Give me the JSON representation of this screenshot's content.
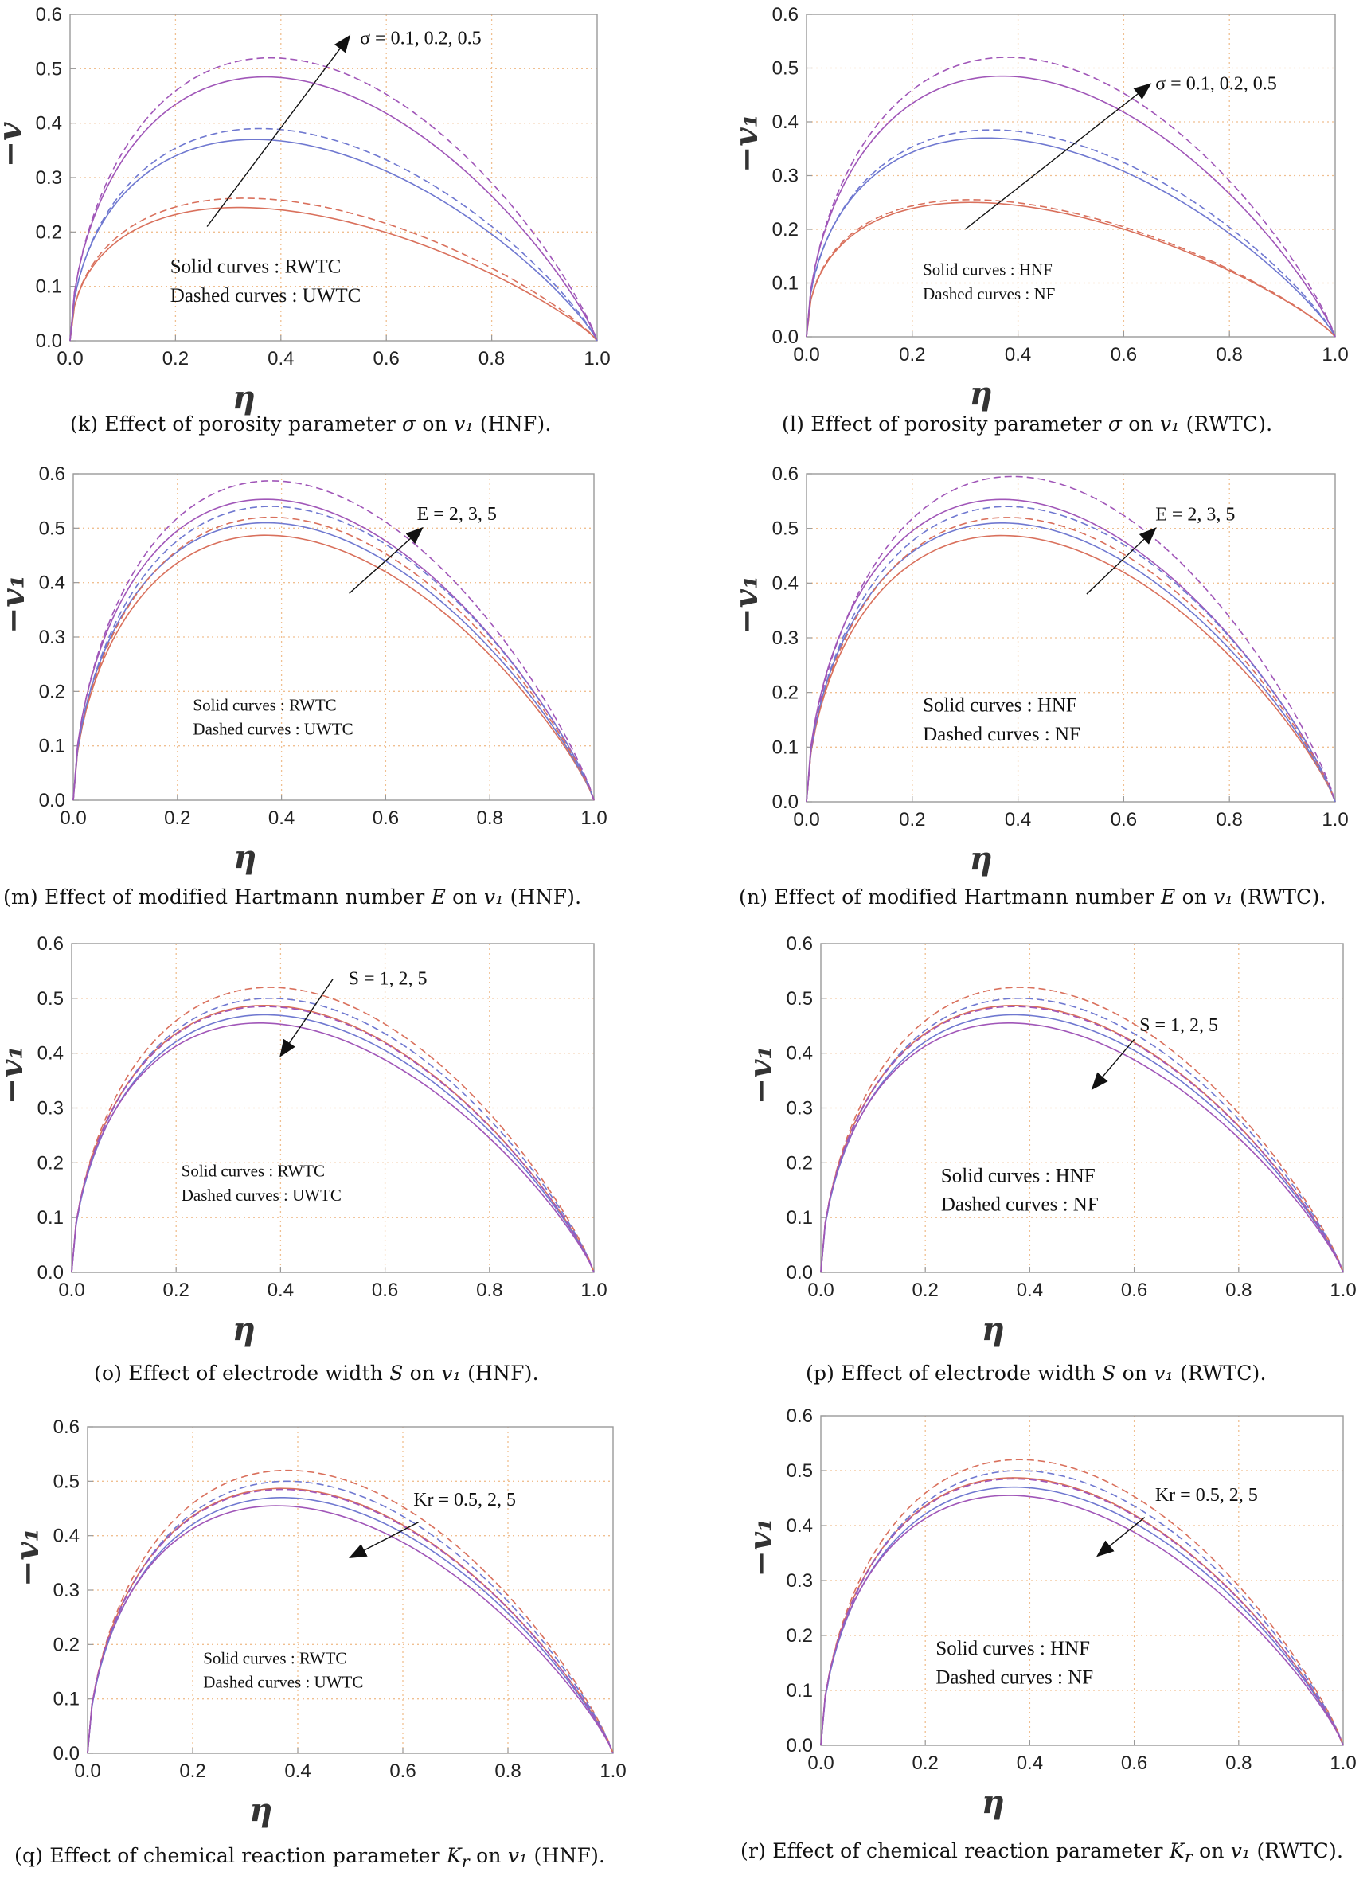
{
  "figure": {
    "colors": {
      "series": [
        "#d9705c",
        "#6f78d0",
        "#a056b8"
      ],
      "frame": "#9a9a9a",
      "grid": "#f0bf90",
      "axis_text": "#222222",
      "arrow": "#111111"
    },
    "panels": [
      {
        "id": "k",
        "caption": {
          "prefix": "(k) Effect of porosity parameter ",
          "sym": "σ",
          "suffix": " on ",
          "var": "v₁",
          "tail": " (HNF)."
        },
        "chart_data": {
          "type": "line",
          "xlabel": "η",
          "ylabel": "−v",
          "xlim": [
            0,
            1
          ],
          "ylim": [
            0,
            0.6
          ],
          "xticks": [
            "0.0",
            "0.2",
            "0.4",
            "0.6",
            "0.8",
            "1.0"
          ],
          "yticks": [
            "0.0",
            "0.1",
            "0.2",
            "0.3",
            "0.4",
            "0.5",
            "0.6"
          ],
          "series": [
            {
              "name": "σ = 0.1 (RWTC)",
              "style": "solid",
              "color": 0,
              "peak": 0.245,
              "peak_x": 0.32
            },
            {
              "name": "σ = 0.2 (RWTC)",
              "style": "solid",
              "color": 1,
              "peak": 0.37,
              "peak_x": 0.35
            },
            {
              "name": "σ = 0.5 (RWTC)",
              "style": "solid",
              "color": 2,
              "peak": 0.485,
              "peak_x": 0.37
            },
            {
              "name": "σ = 0.1 (UWTC)",
              "style": "dashed",
              "color": 0,
              "peak": 0.262,
              "peak_x": 0.33
            },
            {
              "name": "σ = 0.2 (UWTC)",
              "style": "dashed",
              "color": 1,
              "peak": 0.39,
              "peak_x": 0.36
            },
            {
              "name": "σ = 0.5 (UWTC)",
              "style": "dashed",
              "color": 2,
              "peak": 0.52,
              "peak_x": 0.38
            }
          ],
          "annotation": {
            "text": "σ = 0.1, 0.2, 0.5",
            "from": [
              0.26,
              0.21
            ],
            "to": [
              0.53,
              0.56
            ],
            "text_at": [
              0.55,
              0.545
            ]
          },
          "legend": {
            "solid": "Solid curves : RWTC",
            "dashed": "Dashed curves : UWTC",
            "at": [
              0.19,
              0.125
            ],
            "size": "large"
          }
        }
      },
      {
        "id": "l",
        "caption": {
          "prefix": "(l) Effect of porosity parameter ",
          "sym": "σ",
          "suffix": " on ",
          "var": "v₁",
          "tail": " (RWTC)."
        },
        "chart_data": {
          "type": "line",
          "xlabel": "η",
          "ylabel": "−v₁",
          "xlim": [
            0,
            1
          ],
          "ylim": [
            0,
            0.6
          ],
          "xticks": [
            "0.0",
            "0.2",
            "0.4",
            "0.6",
            "0.8",
            "1.0"
          ],
          "yticks": [
            "0.0",
            "0.1",
            "0.2",
            "0.3",
            "0.4",
            "0.5",
            "0.6"
          ],
          "series": [
            {
              "name": "σ = 0.1 (HNF)",
              "style": "solid",
              "color": 0,
              "peak": 0.25,
              "peak_x": 0.31
            },
            {
              "name": "σ = 0.2 (HNF)",
              "style": "solid",
              "color": 1,
              "peak": 0.37,
              "peak_x": 0.34
            },
            {
              "name": "σ = 0.5 (HNF)",
              "style": "solid",
              "color": 2,
              "peak": 0.485,
              "peak_x": 0.37
            },
            {
              "name": "σ = 0.1 (NF)",
              "style": "dashed",
              "color": 0,
              "peak": 0.255,
              "peak_x": 0.31
            },
            {
              "name": "σ = 0.2 (NF)",
              "style": "dashed",
              "color": 1,
              "peak": 0.385,
              "peak_x": 0.35
            },
            {
              "name": "σ = 0.5 (NF)",
              "style": "dashed",
              "color": 2,
              "peak": 0.52,
              "peak_x": 0.38
            }
          ],
          "annotation": {
            "text": "σ = 0.1, 0.2, 0.5",
            "from": [
              0.3,
              0.2
            ],
            "to": [
              0.65,
              0.47
            ],
            "text_at": [
              0.66,
              0.46
            ]
          },
          "legend": {
            "solid": "Solid curves : HNF",
            "dashed": "Dashed curves : NF",
            "at": [
              0.22,
              0.115
            ],
            "size": "small"
          }
        }
      },
      {
        "id": "m",
        "caption": {
          "prefix": "(m) Effect of modified Hartmann number ",
          "sym": "E",
          "suffix": " on ",
          "var": "v₁",
          "tail": " (HNF)."
        },
        "chart_data": {
          "type": "line",
          "xlabel": "η",
          "ylabel": "−v₁",
          "xlim": [
            0,
            1
          ],
          "ylim": [
            0,
            0.6
          ],
          "xticks": [
            "0.0",
            "0.2",
            "0.4",
            "0.6",
            "0.8",
            "1.0"
          ],
          "yticks": [
            "0.0",
            "0.1",
            "0.2",
            "0.3",
            "0.4",
            "0.5",
            "0.6"
          ],
          "series": [
            {
              "name": "E = 2 (RWTC)",
              "style": "solid",
              "color": 0,
              "peak": 0.487,
              "peak_x": 0.37
            },
            {
              "name": "E = 3 (RWTC)",
              "style": "solid",
              "color": 1,
              "peak": 0.51,
              "peak_x": 0.37
            },
            {
              "name": "E = 5 (RWTC)",
              "style": "solid",
              "color": 2,
              "peak": 0.553,
              "peak_x": 0.37
            },
            {
              "name": "E = 2 (UWTC)",
              "style": "dashed",
              "color": 0,
              "peak": 0.52,
              "peak_x": 0.38
            },
            {
              "name": "E = 3 (UWTC)",
              "style": "dashed",
              "color": 1,
              "peak": 0.54,
              "peak_x": 0.38
            },
            {
              "name": "E = 5 (UWTC)",
              "style": "dashed",
              "color": 2,
              "peak": 0.587,
              "peak_x": 0.38
            }
          ],
          "annotation": {
            "text": "E = 2, 3, 5",
            "from": [
              0.53,
              0.38
            ],
            "to": [
              0.67,
              0.5
            ],
            "text_at": [
              0.66,
              0.515
            ]
          },
          "legend": {
            "solid": "Solid curves : RWTC",
            "dashed": "Dashed curves : UWTC",
            "at": [
              0.23,
              0.165
            ],
            "size": "small"
          }
        }
      },
      {
        "id": "n",
        "caption": {
          "prefix": "(n) Effect of modified Hartmann number ",
          "sym": "E",
          "suffix": " on ",
          "var": "v₁",
          "tail": " (RWTC)."
        },
        "chart_data": {
          "type": "line",
          "xlabel": "η",
          "ylabel": "−v₁",
          "xlim": [
            0,
            1
          ],
          "ylim": [
            0,
            0.6
          ],
          "xticks": [
            "0.0",
            "0.2",
            "0.4",
            "0.6",
            "0.8",
            "1.0"
          ],
          "yticks": [
            "0.0",
            "0.1",
            "0.2",
            "0.3",
            "0.4",
            "0.5",
            "0.6"
          ],
          "series": [
            {
              "name": "E = 2 (HNF)",
              "style": "solid",
              "color": 0,
              "peak": 0.487,
              "peak_x": 0.37
            },
            {
              "name": "E = 3 (HNF)",
              "style": "solid",
              "color": 1,
              "peak": 0.51,
              "peak_x": 0.37
            },
            {
              "name": "E = 5 (HNF)",
              "style": "solid",
              "color": 2,
              "peak": 0.553,
              "peak_x": 0.37
            },
            {
              "name": "E = 2 (NF)",
              "style": "dashed",
              "color": 0,
              "peak": 0.52,
              "peak_x": 0.38
            },
            {
              "name": "E = 3 (NF)",
              "style": "dashed",
              "color": 1,
              "peak": 0.54,
              "peak_x": 0.38
            },
            {
              "name": "E = 5 (NF)",
              "style": "dashed",
              "color": 2,
              "peak": 0.595,
              "peak_x": 0.39
            }
          ],
          "annotation": {
            "text": "E = 2, 3, 5",
            "from": [
              0.53,
              0.38
            ],
            "to": [
              0.66,
              0.5
            ],
            "text_at": [
              0.66,
              0.515
            ]
          },
          "legend": {
            "solid": "Solid curves : HNF",
            "dashed": "Dashed curves : NF",
            "at": [
              0.22,
              0.165
            ],
            "size": "large"
          }
        }
      },
      {
        "id": "o",
        "caption": {
          "prefix": "(o) Effect of electrode width ",
          "sym": "S",
          "suffix": " on ",
          "var": "v₁",
          "tail": " (HNF)."
        },
        "chart_data": {
          "type": "line",
          "xlabel": "η",
          "ylabel": "−v₁",
          "xlim": [
            0,
            1
          ],
          "ylim": [
            0,
            0.6
          ],
          "xticks": [
            "0.0",
            "0.2",
            "0.4",
            "0.6",
            "0.8",
            "1.0"
          ],
          "yticks": [
            "0.0",
            "0.1",
            "0.2",
            "0.3",
            "0.4",
            "0.5",
            "0.6"
          ],
          "series": [
            {
              "name": "S = 1 (RWTC)",
              "style": "solid",
              "color": 0,
              "peak": 0.487,
              "peak_x": 0.37
            },
            {
              "name": "S = 2 (RWTC)",
              "style": "solid",
              "color": 1,
              "peak": 0.47,
              "peak_x": 0.37
            },
            {
              "name": "S = 5 (RWTC)",
              "style": "solid",
              "color": 2,
              "peak": 0.455,
              "peak_x": 0.36
            },
            {
              "name": "S = 1 (UWTC)",
              "style": "dashed",
              "color": 0,
              "peak": 0.52,
              "peak_x": 0.38
            },
            {
              "name": "S = 2 (UWTC)",
              "style": "dashed",
              "color": 1,
              "peak": 0.5,
              "peak_x": 0.38
            },
            {
              "name": "S = 5 (UWTC)",
              "style": "dashed",
              "color": 2,
              "peak": 0.485,
              "peak_x": 0.37
            }
          ],
          "annotation": {
            "text": "S = 1, 2, 5",
            "from": [
              0.5,
              0.535
            ],
            "to": [
              0.4,
              0.395
            ],
            "text_at": [
              0.53,
              0.525
            ]
          },
          "legend": {
            "solid": "Solid curves : RWTC",
            "dashed": "Dashed curves : UWTC",
            "at": [
              0.21,
              0.175
            ],
            "size": "small"
          }
        }
      },
      {
        "id": "p",
        "caption": {
          "prefix": "(p) Effect of electrode width ",
          "sym": "S",
          "suffix": " on ",
          "var": "v₁",
          "tail": " (RWTC)."
        },
        "chart_data": {
          "type": "line",
          "xlabel": "η",
          "ylabel": "−v₁",
          "xlim": [
            0,
            1
          ],
          "ylim": [
            0,
            0.6
          ],
          "xticks": [
            "0.0",
            "0.2",
            "0.4",
            "0.6",
            "0.8",
            "1.0"
          ],
          "yticks": [
            "0.0",
            "0.1",
            "0.2",
            "0.3",
            "0.4",
            "0.5",
            "0.6"
          ],
          "series": [
            {
              "name": "S = 1 (HNF)",
              "style": "solid",
              "color": 0,
              "peak": 0.487,
              "peak_x": 0.37
            },
            {
              "name": "S = 2 (HNF)",
              "style": "solid",
              "color": 1,
              "peak": 0.47,
              "peak_x": 0.37
            },
            {
              "name": "S = 5 (HNF)",
              "style": "solid",
              "color": 2,
              "peak": 0.455,
              "peak_x": 0.36
            },
            {
              "name": "S = 1 (NF)",
              "style": "dashed",
              "color": 0,
              "peak": 0.52,
              "peak_x": 0.38
            },
            {
              "name": "S = 2 (NF)",
              "style": "dashed",
              "color": 1,
              "peak": 0.5,
              "peak_x": 0.38
            },
            {
              "name": "S = 5 (NF)",
              "style": "dashed",
              "color": 2,
              "peak": 0.485,
              "peak_x": 0.37
            }
          ],
          "annotation": {
            "text": "S = 1, 2, 5",
            "from": [
              0.6,
              0.425
            ],
            "to": [
              0.52,
              0.335
            ],
            "text_at": [
              0.61,
              0.44
            ]
          },
          "legend": {
            "solid": "Solid curves : HNF",
            "dashed": "Dashed curves : NF",
            "at": [
              0.23,
              0.165
            ],
            "size": "large"
          }
        }
      },
      {
        "id": "q",
        "caption": {
          "prefix": "(q) Effect of chemical reaction parameter ",
          "sym": "K",
          "sub": "r",
          "suffix": " on ",
          "var": "v₁",
          "tail": " (HNF)."
        },
        "chart_data": {
          "type": "line",
          "xlabel": "η",
          "ylabel": "−v₁",
          "xlim": [
            0,
            1
          ],
          "ylim": [
            0,
            0.6
          ],
          "xticks": [
            "0.0",
            "0.2",
            "0.4",
            "0.6",
            "0.8",
            "1.0"
          ],
          "yticks": [
            "0.0",
            "0.1",
            "0.2",
            "0.3",
            "0.4",
            "0.5",
            "0.6"
          ],
          "series": [
            {
              "name": "Kr = 0.5 (RWTC)",
              "style": "solid",
              "color": 0,
              "peak": 0.487,
              "peak_x": 0.37
            },
            {
              "name": "Kr = 2 (RWTC)",
              "style": "solid",
              "color": 1,
              "peak": 0.47,
              "peak_x": 0.37
            },
            {
              "name": "Kr = 5 (RWTC)",
              "style": "solid",
              "color": 2,
              "peak": 0.455,
              "peak_x": 0.36
            },
            {
              "name": "Kr = 0.5 (UWTC)",
              "style": "dashed",
              "color": 0,
              "peak": 0.52,
              "peak_x": 0.38
            },
            {
              "name": "Kr = 2 (UWTC)",
              "style": "dashed",
              "color": 1,
              "peak": 0.5,
              "peak_x": 0.38
            },
            {
              "name": "Kr = 5 (UWTC)",
              "style": "dashed",
              "color": 2,
              "peak": 0.485,
              "peak_x": 0.37
            }
          ],
          "annotation": {
            "text": "Kr = 0.5, 2, 5",
            "from": [
              0.63,
              0.425
            ],
            "to": [
              0.5,
              0.36
            ],
            "text_at": [
              0.62,
              0.455
            ]
          },
          "legend": {
            "solid": "Solid curves : RWTC",
            "dashed": "Dashed curves : UWTC",
            "at": [
              0.22,
              0.165
            ],
            "size": "small"
          }
        }
      },
      {
        "id": "r",
        "caption": {
          "prefix": "(r) Effect of chemical reaction parameter ",
          "sym": "K",
          "sub": "r",
          "suffix": " on ",
          "var": "v₁",
          "tail": " (RWTC)."
        },
        "chart_data": {
          "type": "line",
          "xlabel": "η",
          "ylabel": "−v₁",
          "xlim": [
            0,
            1
          ],
          "ylim": [
            0,
            0.6
          ],
          "xticks": [
            "0.0",
            "0.2",
            "0.4",
            "0.6",
            "0.8",
            "1.0"
          ],
          "yticks": [
            "0.0",
            "0.1",
            "0.2",
            "0.3",
            "0.4",
            "0.5",
            "0.6"
          ],
          "series": [
            {
              "name": "Kr = 0.5 (HNF)",
              "style": "solid",
              "color": 0,
              "peak": 0.487,
              "peak_x": 0.37
            },
            {
              "name": "Kr = 2 (HNF)",
              "style": "solid",
              "color": 1,
              "peak": 0.47,
              "peak_x": 0.37
            },
            {
              "name": "Kr = 5 (HNF)",
              "style": "solid",
              "color": 2,
              "peak": 0.455,
              "peak_x": 0.36
            },
            {
              "name": "Kr = 0.5 (NF)",
              "style": "dashed",
              "color": 0,
              "peak": 0.52,
              "peak_x": 0.38
            },
            {
              "name": "Kr = 2 (NF)",
              "style": "dashed",
              "color": 1,
              "peak": 0.5,
              "peak_x": 0.38
            },
            {
              "name": "Kr = 5 (NF)",
              "style": "dashed",
              "color": 2,
              "peak": 0.485,
              "peak_x": 0.37
            }
          ],
          "annotation": {
            "text": "Kr = 0.5, 2, 5",
            "from": [
              0.62,
              0.415
            ],
            "to": [
              0.53,
              0.345
            ],
            "text_at": [
              0.64,
              0.445
            ]
          },
          "legend": {
            "solid": "Solid curves : HNF",
            "dashed": "Dashed curves : NF",
            "at": [
              0.22,
              0.165
            ],
            "size": "large"
          }
        }
      }
    ]
  }
}
